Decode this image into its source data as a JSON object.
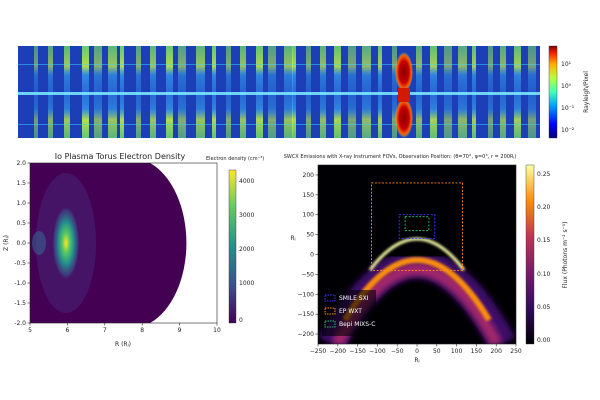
{
  "chart_data": [
    {
      "type": "heatmap",
      "title": "",
      "colorbar": {
        "label": "Rayleigh/Pixel",
        "scale": "log",
        "ticks": [
          "10¹",
          "10⁰",
          "10⁻¹",
          "10⁻²"
        ],
        "colormap": "jet"
      },
      "grid": false
    },
    {
      "type": "heatmap",
      "title": "Io Plasma Torus Electron Density",
      "xlabel": "R (Rⱼ)",
      "ylabel": "Z (Rⱼ)",
      "xlim": [
        5,
        10
      ],
      "ylim": [
        -2.0,
        2.0
      ],
      "x_ticks": [
        "5",
        "6",
        "7",
        "8",
        "9",
        "10"
      ],
      "y_ticks": [
        "2.0",
        "1.5",
        "1.0",
        "0.5",
        "0.0",
        "-0.5",
        "-1.0",
        "-1.5",
        "-2.0"
      ],
      "colorbar": {
        "label": "Electron density (cm⁻³)",
        "ticks": [
          "4000",
          "3000",
          "2000",
          "1000",
          "0"
        ],
        "range": [
          0,
          4500
        ],
        "colormap": "viridis"
      },
      "peak": {
        "r": 5.9,
        "z": 0.0,
        "value": 4200
      }
    },
    {
      "type": "heatmap",
      "title": "SWCX Emissions with X-ray Instrument FOVs, Observation Position: (θ=70°, φ=0°, r = 200R⁣ⱼ)",
      "xlabel": "Rⱼ",
      "ylabel": "Rⱼ",
      "xlim": [
        -250,
        250
      ],
      "ylim": [
        -225,
        225
      ],
      "x_ticks": [
        "−250",
        "−200",
        "−150",
        "−100",
        "−50",
        "0",
        "50",
        "100",
        "150",
        "200",
        "250"
      ],
      "y_ticks": [
        "200",
        "150",
        "100",
        "50",
        "0",
        "−50",
        "−100",
        "−150",
        "−200"
      ],
      "colorbar": {
        "label": "Flux (Photons m⁻² s⁻¹)",
        "ticks": [
          "0.25",
          "0.20",
          "0.15",
          "0.10",
          "0.05",
          "0.00"
        ],
        "range": [
          0,
          0.27
        ],
        "colormap": "inferno"
      },
      "legend": {
        "placement": "bottom-left",
        "entries": [
          {
            "name": "SMILE SXI",
            "color": "#3a3aff"
          },
          {
            "name": "EP WXT",
            "color": "#ff8a1e"
          },
          {
            "name": "Bepi MIXS-C",
            "color": "#2fbf71"
          }
        ]
      },
      "fov_boxes": [
        {
          "name": "EP WXT",
          "x": [
            -115,
            115
          ],
          "y": [
            -40,
            180
          ],
          "color": "#ff8a1e"
        },
        {
          "name": "SMILE SXI",
          "x": [
            -45,
            45
          ],
          "y": [
            40,
            100
          ],
          "color": "#3a3aff"
        },
        {
          "name": "Bepi MIXS-C",
          "x": [
            -30,
            30
          ],
          "y": [
            60,
            95
          ],
          "color": "#2fbf71"
        }
      ]
    }
  ]
}
